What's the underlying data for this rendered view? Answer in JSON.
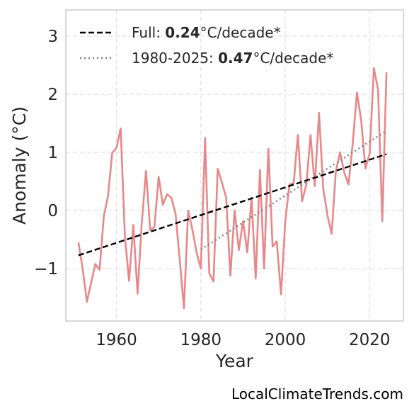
{
  "chart_data": {
    "type": "line",
    "title": "",
    "xlabel": "Year",
    "ylabel": "Anomaly (°C)",
    "xlim": [
      1948,
      2028
    ],
    "ylim": [
      -1.9,
      3.45
    ],
    "xticks": [
      1960,
      1980,
      2000,
      2020
    ],
    "yticks": [
      -1,
      0,
      1,
      2,
      3
    ],
    "ytick_labels": [
      "−1",
      "0",
      "1",
      "2",
      "3"
    ],
    "grid": true,
    "legend_position": "top-left",
    "series": [
      {
        "style": "solid",
        "color": "#e8878a",
        "x": [
          1951,
          1952,
          1953,
          1954,
          1955,
          1956,
          1957,
          1958,
          1959,
          1960,
          1961,
          1962,
          1963,
          1964,
          1965,
          1966,
          1967,
          1968,
          1969,
          1970,
          1971,
          1972,
          1973,
          1974,
          1975,
          1976,
          1977,
          1978,
          1979,
          1980,
          1981,
          1982,
          1983,
          1984,
          1985,
          1986,
          1987,
          1988,
          1989,
          1990,
          1991,
          1992,
          1993,
          1994,
          1995,
          1996,
          1997,
          1998,
          1999,
          2000,
          2001,
          2002,
          2003,
          2004,
          2005,
          2006,
          2007,
          2008,
          2009,
          2010,
          2011,
          2012,
          2013,
          2014,
          2015,
          2016,
          2017,
          2018,
          2019,
          2020,
          2021,
          2022,
          2023,
          2024
        ],
        "y": [
          -0.55,
          -1.0,
          -1.57,
          -1.24,
          -0.92,
          -1.02,
          -0.1,
          0.25,
          0.99,
          1.08,
          1.41,
          -0.45,
          -1.21,
          -0.25,
          -1.43,
          -0.22,
          0.68,
          -0.34,
          -0.28,
          0.58,
          0.1,
          0.28,
          0.22,
          -0.05,
          -0.85,
          -1.68,
          0.0,
          -0.33,
          -0.72,
          -1.0,
          1.25,
          -1.08,
          -1.22,
          0.72,
          0.48,
          0.22,
          -1.12,
          0.0,
          -0.68,
          -0.18,
          -0.72,
          0.22,
          -1.17,
          0.7,
          -1.0,
          1.06,
          -0.62,
          -0.53,
          -1.44,
          -0.18,
          0.45,
          0.47,
          1.3,
          0.16,
          0.45,
          1.3,
          0.42,
          1.68,
          0.38,
          -0.08,
          -0.4,
          0.68,
          1.0,
          0.65,
          0.45,
          1.15,
          2.03,
          1.55,
          0.72,
          0.98,
          2.45,
          2.08,
          -0.18,
          2.38
        ]
      },
      {
        "name": "Full",
        "style": "dashed",
        "color": "#000000",
        "x": [
          1951,
          2024
        ],
        "y": [
          -0.77,
          0.97
        ]
      },
      {
        "name": "1980-2025",
        "style": "dotted",
        "color": "#808080",
        "x": [
          1980,
          2024
        ],
        "y": [
          -0.67,
          1.37
        ]
      }
    ],
    "legend": [
      {
        "prefix": "Full: ",
        "value": "0.24",
        "suffix": "°C/decade*",
        "style": "dashed",
        "color": "#000000"
      },
      {
        "prefix": "1980-2025: ",
        "value": "0.47",
        "suffix": "°C/decade*",
        "style": "dotted",
        "color": "#808080"
      }
    ]
  },
  "watermark": "LocalClimateTrends.com"
}
